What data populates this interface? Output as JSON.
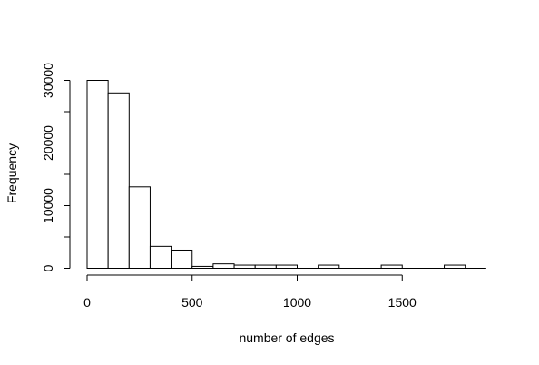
{
  "chart_data": {
    "type": "bar",
    "title": "",
    "xlabel": "number of edges",
    "ylabel": "Frequency",
    "bin_width": 100,
    "bins": [
      {
        "x0": 0,
        "x1": 100,
        "count": 30000
      },
      {
        "x0": 100,
        "x1": 200,
        "count": 28000
      },
      {
        "x0": 200,
        "x1": 300,
        "count": 13000
      },
      {
        "x0": 300,
        "x1": 400,
        "count": 3500
      },
      {
        "x0": 400,
        "x1": 500,
        "count": 2900
      },
      {
        "x0": 500,
        "x1": 600,
        "count": 300
      },
      {
        "x0": 600,
        "x1": 700,
        "count": 700
      },
      {
        "x0": 700,
        "x1": 800,
        "count": 500
      },
      {
        "x0": 800,
        "x1": 900,
        "count": 500
      },
      {
        "x0": 900,
        "x1": 1000,
        "count": 500
      },
      {
        "x0": 1000,
        "x1": 1100,
        "count": 0
      },
      {
        "x0": 1100,
        "x1": 1200,
        "count": 500
      },
      {
        "x0": 1200,
        "x1": 1300,
        "count": 0
      },
      {
        "x0": 1300,
        "x1": 1400,
        "count": 0
      },
      {
        "x0": 1400,
        "x1": 1500,
        "count": 500
      },
      {
        "x0": 1500,
        "x1": 1600,
        "count": 0
      },
      {
        "x0": 1600,
        "x1": 1700,
        "count": 0
      },
      {
        "x0": 1700,
        "x1": 1800,
        "count": 500
      },
      {
        "x0": 1800,
        "x1": 1900,
        "count": 0
      }
    ],
    "xlim": [
      0,
      1900
    ],
    "ylim": [
      0,
      30000
    ],
    "x_ticks": [
      0,
      500,
      1000,
      1500
    ],
    "y_ticks": [
      0,
      10000,
      20000,
      30000
    ],
    "x_tick_labels": [
      "0",
      "500",
      "1000",
      "1500"
    ],
    "y_tick_labels": [
      "0",
      "10000",
      "20000",
      "30000"
    ],
    "minor_y_ticks": [
      5000,
      15000,
      25000
    ],
    "grid": false,
    "legend": "none",
    "bar_fill": "#ffffff",
    "bar_stroke": "#000000"
  }
}
